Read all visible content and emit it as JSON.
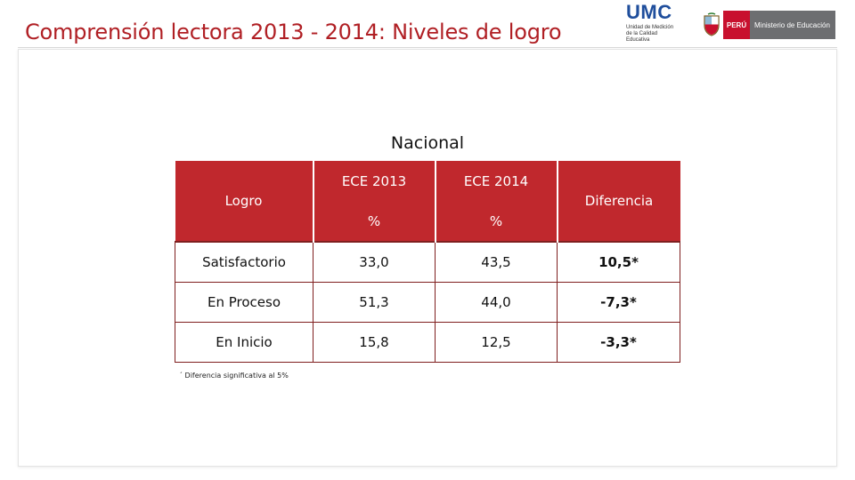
{
  "header": {
    "title": "Comprensión lectora 2013 - 2014: Niveles de logro"
  },
  "logos": {
    "umc_label": "UMC",
    "umc_subtitle": "Unidad de Medición de la Calidad Educativa",
    "peru_label": "PERÚ",
    "ministry_label": "Ministerio de Educación"
  },
  "table": {
    "caption": "Nacional",
    "col_logro": "Logro",
    "col_ece2013": "ECE  2013",
    "col_ece2014": "ECE  2014",
    "col_diferencia": "Diferencia",
    "pct_2013": "%",
    "pct_2014": "%",
    "rows": [
      {
        "logro": "Satisfactorio",
        "ece2013": "33,0",
        "ece2014": "43,5",
        "diferencia": "10,5*"
      },
      {
        "logro": "En Proceso",
        "ece2013": "51,3",
        "ece2014": "44,0",
        "diferencia": "-7,3*"
      },
      {
        "logro": "En Inicio",
        "ece2013": "15,8",
        "ece2014": "12,5",
        "diferencia": "-3,3*"
      }
    ],
    "footnote": "´ Diferencia significativa al 5%"
  },
  "colors": {
    "accent_red": "#c0282d",
    "title_red": "#b01f24",
    "diff_text": "#5e4c22"
  }
}
